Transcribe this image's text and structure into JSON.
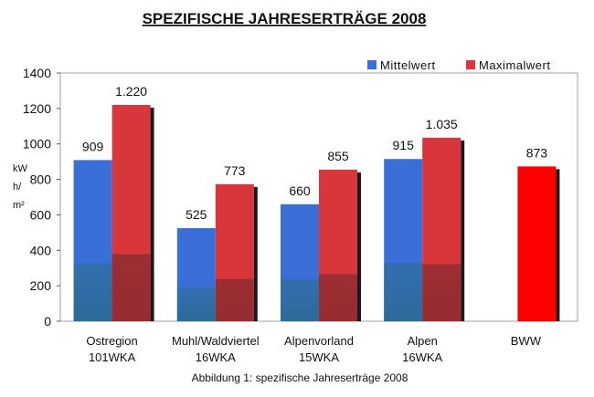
{
  "chart_data": {
    "type": "bar",
    "title": "SPEZIFISCHE JAHRESERTRÄGE 2008",
    "ylabel": "kW h/ m²",
    "ylabel_lines": [
      "kW",
      "h/",
      "m²"
    ],
    "xlabel": "",
    "ylim": [
      0,
      1400
    ],
    "yticks": [
      0,
      200,
      400,
      600,
      800,
      1000,
      1200,
      1400
    ],
    "grid": false,
    "legend_position": "top-right",
    "categories": [
      [
        "Ostregion",
        "101WKA"
      ],
      [
        "Muhl/Waldviertel",
        "16WKA"
      ],
      [
        "Alpenvorland",
        "15WKA"
      ],
      [
        "Alpen",
        "16WKA"
      ],
      [
        "BWW"
      ]
    ],
    "series": [
      {
        "name": "Mittelwert",
        "color": "#3a6fd8",
        "values": [
          909,
          525,
          660,
          915,
          null
        ],
        "labels": [
          "909",
          "525",
          "660",
          "915",
          ""
        ]
      },
      {
        "name": "Maximalwert",
        "color": "#d8363a",
        "values": [
          1220,
          773,
          855,
          1035,
          873
        ],
        "labels": [
          "1.220",
          "773",
          "855",
          "1.035",
          "873"
        ]
      }
    ],
    "highlight_color": "#ff0000",
    "caption": "Abbildung 1: spezifische Jahreserträge 2008"
  }
}
